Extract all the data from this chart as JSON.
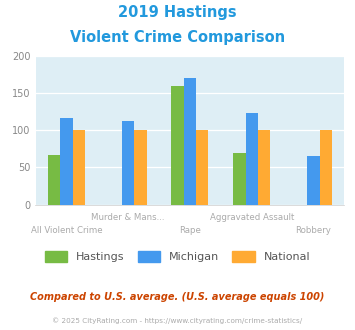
{
  "title_line1": "2019 Hastings",
  "title_line2": "Violent Crime Comparison",
  "categories": [
    "All Violent Crime",
    "Murder & Mans...",
    "Rape",
    "Aggravated Assault",
    "Robbery"
  ],
  "hastings": [
    67,
    0,
    160,
    70,
    0
  ],
  "michigan": [
    116,
    112,
    170,
    124,
    65
  ],
  "national": [
    100,
    100,
    100,
    100,
    100
  ],
  "color_hastings": "#77bb44",
  "color_michigan": "#4499ee",
  "color_national": "#ffaa33",
  "ylim": [
    0,
    200
  ],
  "yticks": [
    0,
    50,
    100,
    150,
    200
  ],
  "title_color": "#2299dd",
  "bg_color": "#deeef5",
  "footer_text": "Compared to U.S. average. (U.S. average equals 100)",
  "copyright_text": "© 2025 CityRating.com - https://www.cityrating.com/crime-statistics/",
  "footer_color": "#cc4400",
  "copyright_color": "#aaaaaa",
  "legend_labels": [
    "Hastings",
    "Michigan",
    "National"
  ]
}
